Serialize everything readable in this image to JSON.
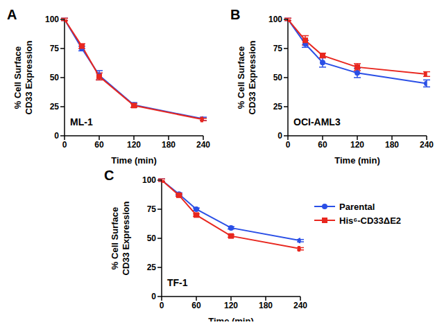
{
  "chart_data": [
    {
      "type": "line",
      "title": "A",
      "annotations": [
        "ML-1"
      ],
      "x_label": "Time (min)",
      "y_label": "% Cell Surface\nCD33 Expression",
      "x": [
        0,
        30,
        60,
        120,
        240
      ],
      "xlim": [
        0,
        240
      ],
      "xticks": [
        0,
        60,
        120,
        180,
        240
      ],
      "ylim": [
        0,
        100
      ],
      "yticks": [
        0,
        25,
        50,
        75,
        100
      ],
      "grid": false,
      "series": [
        {
          "name": "Parental",
          "color": "#2a4fe6",
          "marker": "circle",
          "values": [
            100,
            75,
            52,
            26.5,
            14.5
          ],
          "errors": [
            1,
            2,
            4,
            2,
            1.5
          ]
        },
        {
          "name": "His⁶-CD33ΔE2",
          "color": "#e8271f",
          "marker": "square",
          "values": [
            100,
            77,
            51,
            26,
            14
          ],
          "errors": [
            1,
            2,
            3,
            1.5,
            1
          ]
        }
      ]
    },
    {
      "type": "line",
      "title": "B",
      "annotations": [
        "OCI-AML3"
      ],
      "x_label": "Time (min)",
      "y_label": "% Cell Surface\nCD33 Expression",
      "x": [
        0,
        30,
        60,
        120,
        240
      ],
      "xlim": [
        0,
        240
      ],
      "xticks": [
        0,
        60,
        120,
        180,
        240
      ],
      "ylim": [
        0,
        100
      ],
      "yticks": [
        0,
        25,
        50,
        75,
        100
      ],
      "grid": false,
      "series": [
        {
          "name": "Parental",
          "color": "#2a4fe6",
          "marker": "circle",
          "values": [
            100,
            79,
            63,
            54,
            45
          ],
          "errors": [
            1,
            3,
            4,
            4,
            3
          ]
        },
        {
          "name": "His⁶-CD33ΔE2",
          "color": "#e8271f",
          "marker": "square",
          "values": [
            100,
            82,
            69,
            59,
            53
          ],
          "errors": [
            1,
            4,
            2,
            3,
            2
          ]
        }
      ]
    },
    {
      "type": "line",
      "title": "C",
      "annotations": [
        "TF-1"
      ],
      "x_label": "Time (min)",
      "y_label": "% Cell Surface\nCD33 Expression",
      "x": [
        0,
        30,
        60,
        120,
        240
      ],
      "xlim": [
        0,
        240
      ],
      "xticks": [
        0,
        60,
        120,
        180,
        240
      ],
      "ylim": [
        0,
        100
      ],
      "yticks": [
        0,
        25,
        50,
        75,
        100
      ],
      "grid": false,
      "legend": "right",
      "series": [
        {
          "name": "Parental",
          "color": "#2a4fe6",
          "marker": "circle",
          "values": [
            100,
            88,
            75,
            59,
            48
          ],
          "errors": [
            1,
            1,
            1,
            1,
            1
          ]
        },
        {
          "name": "His⁶-CD33ΔE2",
          "color": "#e8271f",
          "marker": "square",
          "values": [
            100,
            87,
            70,
            52,
            41
          ],
          "errors": [
            1,
            1,
            1,
            1,
            1
          ]
        }
      ]
    }
  ]
}
